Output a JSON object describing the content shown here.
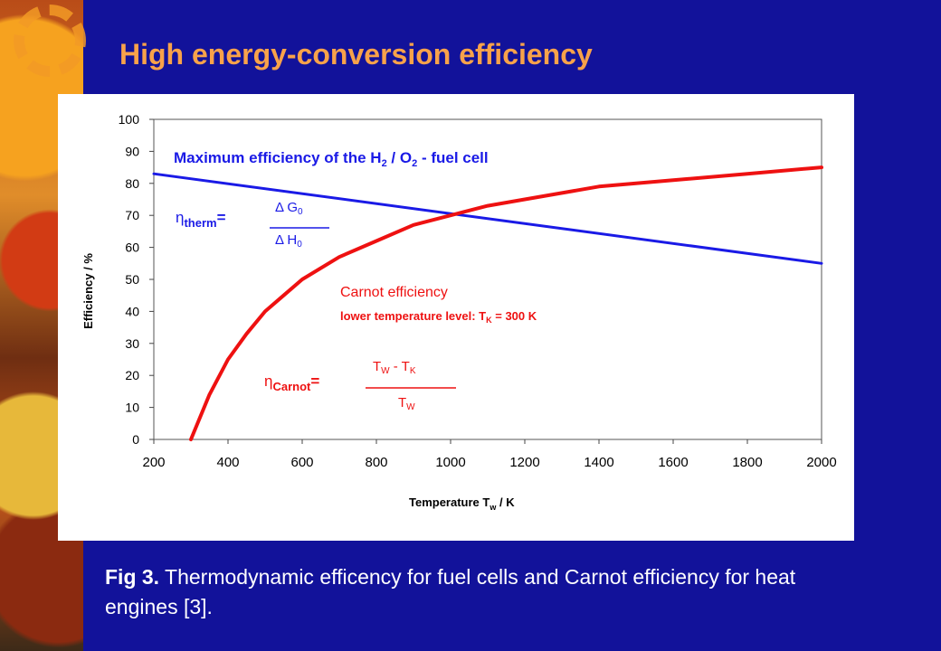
{
  "slide": {
    "title": "High energy-conversion efficiency",
    "caption_label": "Fig 3.",
    "caption_text": "Thermodynamic efficency for fuel cells and Carnot efficiency for heat engines [3]."
  },
  "colors": {
    "background": "#12129a",
    "title": "#f8a24a",
    "fuel_cell_line": "#1a1ae6",
    "carnot_line": "#ee1111"
  },
  "chart_data": {
    "type": "line",
    "xlabel": "Temperature T",
    "xlabel_sub": "w",
    "xlabel_unit": " / K",
    "ylabel": "Efficiency / %",
    "xlim": [
      200,
      2000
    ],
    "ylim": [
      0,
      100
    ],
    "xticks": [
      200,
      400,
      600,
      800,
      1000,
      1200,
      1400,
      1600,
      1800,
      2000
    ],
    "yticks": [
      0,
      10,
      20,
      30,
      40,
      50,
      60,
      70,
      80,
      90,
      100
    ],
    "grid": false,
    "series": [
      {
        "name": "Maximum efficiency of the H2 / O2 - fuel cell",
        "color": "#1a1ae6",
        "x": [
          200,
          2000
        ],
        "y": [
          83,
          55
        ]
      },
      {
        "name": "Carnot efficiency",
        "color": "#ee1111",
        "x": [
          300,
          350,
          400,
          450,
          500,
          550,
          600,
          700,
          800,
          900,
          1000,
          1100,
          1200,
          1400,
          1600,
          1800,
          2000
        ],
        "y": [
          0,
          14,
          25,
          33,
          40,
          45,
          50,
          57,
          62,
          67,
          70,
          73,
          75,
          79,
          81,
          83,
          85
        ]
      }
    ],
    "annotations": {
      "fuel_cell_title_pre": "Maximum efficiency of the H",
      "fuel_cell_title_sub1": "2",
      "fuel_cell_title_mid": " / O",
      "fuel_cell_title_sub2": "2",
      "fuel_cell_title_post": " - fuel cell",
      "eta_symbol": "η",
      "eta_therm_sub": "therm",
      "equals": "=",
      "delta_g": "Δ G",
      "delta_g_sub": "0",
      "delta_h": "Δ H",
      "delta_h_sub": "0",
      "carnot_title": "Carnot efficiency",
      "carnot_subtitle_pre": "lower temperature level: T",
      "carnot_subtitle_sub": "K",
      "carnot_subtitle_post": " = 300 K",
      "eta_carnot_sub": "Carnot",
      "tw_minus_tk_a": "T",
      "tw_sub": "W",
      "tw_minus_tk_mid": " - T",
      "tk_sub": "K",
      "tw_denom": "T",
      "tw_denom_sub": "W"
    }
  }
}
